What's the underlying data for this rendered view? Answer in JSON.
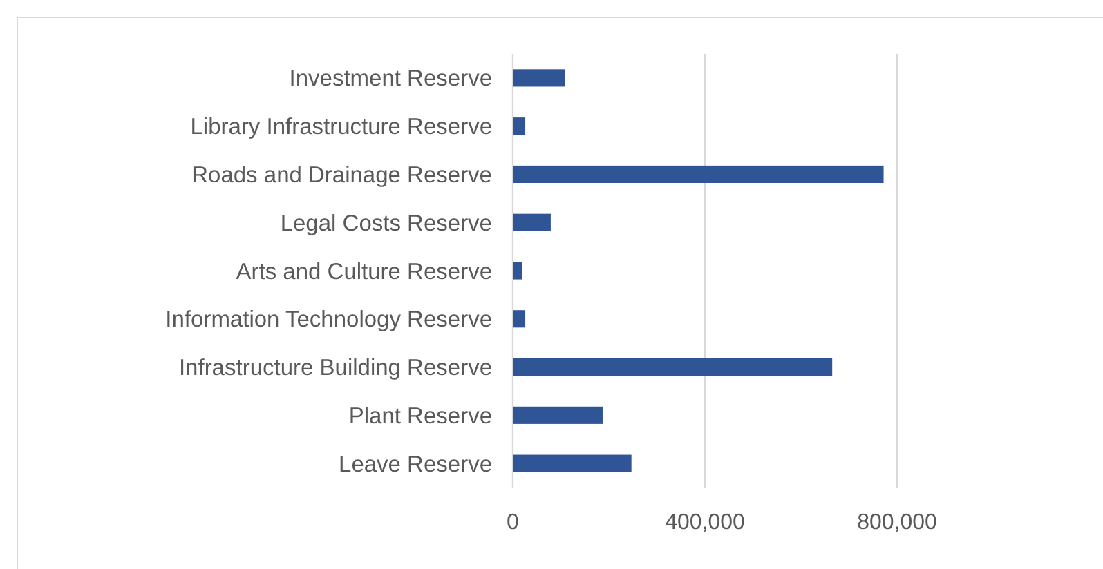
{
  "chart_data": {
    "type": "bar",
    "orientation": "horizontal",
    "categories": [
      "Investment Reserve",
      "Library Infrastructure Reserve",
      "Roads and Drainage Reserve",
      "Legal Costs Reserve",
      "Arts and Culture Reserve",
      "Information Technology Reserve",
      "Infrastructure Building Reserve",
      "Plant Reserve ",
      "Leave Reserve"
    ],
    "values": [
      109000,
      26000,
      772000,
      79000,
      19000,
      26000,
      665000,
      187000,
      247000
    ],
    "color": "#2f5597",
    "xlim": [
      0,
      800000
    ],
    "xticks": [
      0,
      {
        "value": 400000,
        "label": "400,000"
      },
      {
        "value": 800000,
        "label": "800,000"
      }
    ],
    "grid": "x"
  }
}
